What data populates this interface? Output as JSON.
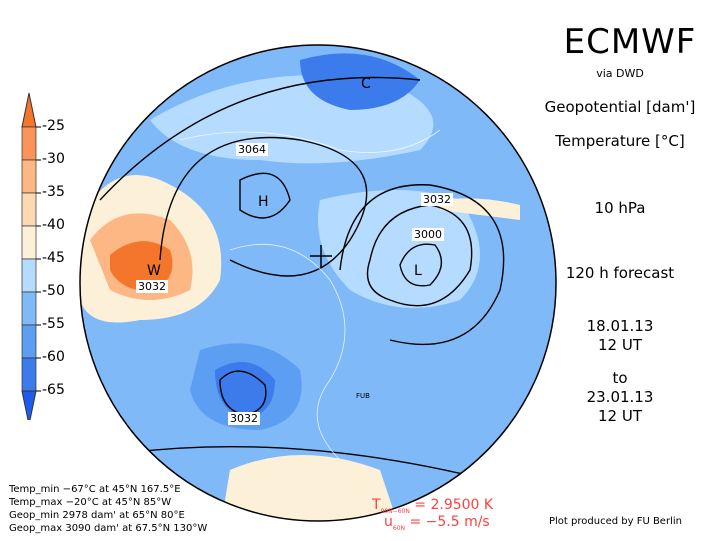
{
  "header": {
    "title": "ECMWF",
    "source": "via DWD",
    "field1": "Geopotential [dam']",
    "field2": "Temperature [°C]",
    "level": "10 hPa",
    "forecast": "120 h forecast",
    "init_date": "18.01.13",
    "init_time": "12 UT",
    "to": "to",
    "valid_date": "23.01.13",
    "valid_time": "12 UT"
  },
  "colorbar": {
    "labels": [
      "-25",
      "-30",
      "-35",
      "-40",
      "-45",
      "-50",
      "-55",
      "-60",
      "-65"
    ],
    "colors": [
      "#f4762c",
      "#f9955a",
      "#fcb784",
      "#fdd9b3",
      "#fdf0d8",
      "#b5dbff",
      "#80b9f8",
      "#5c9ef2",
      "#3b7bec",
      "#1e5cf0"
    ]
  },
  "map": {
    "labels": {
      "c1": "C",
      "h1": "H",
      "w1": "W",
      "l1": "L",
      "g3064": "3064",
      "g3032a": "3032",
      "g3000": "3000",
      "g3032b": "3032",
      "g3032c": "3032",
      "fub": "FUB"
    }
  },
  "stats": [
    "Temp_min −67°C at 45°N 167.5°E",
    "Temp_max −20°C at 45°N 85°W",
    "Geop_min 2978 dam' at 65°N 80°E",
    "Geop_max 3090 dam' at 67.5°N 130°W"
  ],
  "indices": {
    "t_label": "T",
    "t_sub": "90N−60N",
    "t_value": "= 2.9500 K",
    "u_label": "u",
    "u_sub": "60N",
    "u_value": "= −5.5 m/s"
  },
  "credit": "Plot produced by FU Berlin"
}
